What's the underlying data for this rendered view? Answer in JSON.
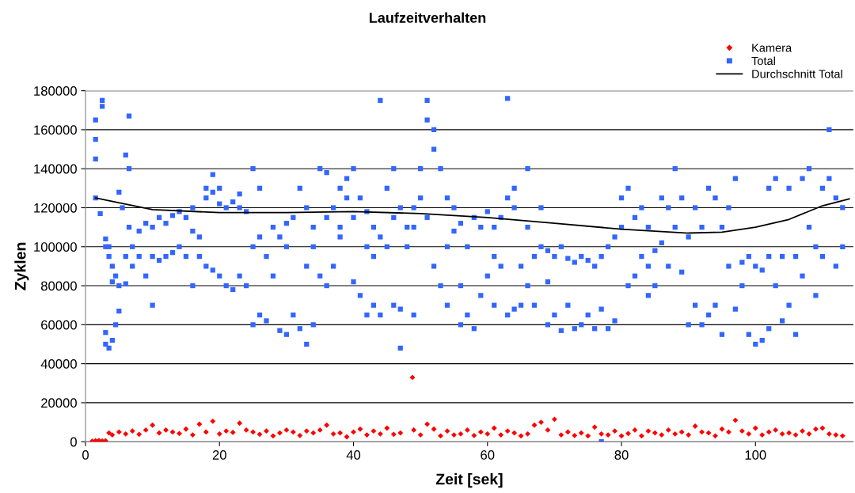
{
  "chart_data": {
    "type": "scatter",
    "title": "Laufzeitverhalten",
    "xlabel": "Zeit [sek]",
    "ylabel": "Zyklen",
    "xlim": [
      0,
      114.6
    ],
    "xticks": [
      0,
      20,
      40,
      60,
      80,
      100
    ],
    "ylim": [
      0,
      180000
    ],
    "yticks": [
      0,
      20000,
      40000,
      60000,
      80000,
      100000,
      120000,
      140000,
      160000,
      180000
    ],
    "grid": "y",
    "legend": "top right",
    "series": [
      {
        "name": "Kamera",
        "color": "#ff0000",
        "marker": "diamond",
        "x": [
          1,
          1.5,
          2,
          2.5,
          3,
          3.5,
          4,
          5,
          6,
          7,
          8,
          9,
          10,
          11,
          12,
          13,
          14,
          15,
          16,
          17,
          18,
          19,
          20,
          21,
          22,
          23,
          24,
          25,
          26,
          27,
          28,
          29,
          30,
          31,
          32,
          33,
          34,
          35,
          36,
          37,
          38,
          39,
          40,
          41,
          42,
          43,
          44,
          45,
          46,
          47,
          48.8,
          49,
          50,
          51,
          52,
          53,
          54,
          55,
          56,
          57,
          58,
          59,
          60,
          61,
          62,
          63,
          64,
          65,
          66,
          67,
          68,
          69,
          70,
          71,
          72,
          73,
          74,
          75,
          76,
          77,
          78,
          79,
          80,
          81,
          82,
          83,
          84,
          85,
          86,
          87,
          88,
          89,
          90,
          91,
          92,
          93,
          94,
          95,
          96,
          97,
          98,
          99,
          100,
          101,
          102,
          103,
          104,
          105,
          106,
          107,
          108,
          109,
          110,
          111,
          112,
          113
        ],
        "values": [
          300,
          500,
          600,
          400,
          500,
          4500,
          3500,
          5000,
          4000,
          5500,
          3800,
          6000,
          8500,
          4500,
          6000,
          5000,
          4200,
          6500,
          3500,
          9000,
          5000,
          10500,
          4000,
          5500,
          4800,
          9500,
          6000,
          5000,
          3800,
          5500,
          3000,
          4500,
          6000,
          5000,
          3200,
          5500,
          4500,
          6000,
          8500,
          4000,
          4500,
          2500,
          5000,
          6500,
          3500,
          5500,
          4000,
          7000,
          3800,
          4500,
          33000,
          6000,
          3500,
          9000,
          6500,
          3000,
          5500,
          3500,
          4000,
          6000,
          3200,
          5000,
          4000,
          7000,
          3500,
          5500,
          4500,
          3000,
          4000,
          8500,
          10000,
          6000,
          11500,
          3500,
          5000,
          3200,
          4500,
          3000,
          7500,
          4000,
          3500,
          5500,
          3000,
          4200,
          6000,
          3000,
          5500,
          4500,
          3500,
          6000,
          4000,
          5000,
          3500,
          8000,
          5000,
          4500,
          3000,
          6500,
          5000,
          11000,
          5500,
          4000,
          7000,
          3500,
          5000,
          6000,
          4000,
          4500,
          3500,
          5500,
          4000,
          6500,
          7000,
          4000,
          3500,
          3000
        ]
      },
      {
        "name": "Total",
        "color": "#3366ff",
        "marker": "square",
        "x": [
          1.5,
          1.5,
          1.5,
          1.5,
          2.2,
          2.5,
          2.5,
          3,
          3,
          3,
          3,
          3.5,
          3.5,
          3.5,
          4,
          4,
          4,
          4.5,
          4.5,
          5,
          5,
          5,
          5.5,
          6,
          6,
          6,
          6.5,
          6.5,
          6.5,
          7,
          7,
          8,
          8,
          9,
          9,
          10,
          10,
          10,
          11,
          11,
          12,
          12,
          13,
          13,
          14,
          14,
          15,
          15,
          16,
          16,
          16,
          17,
          17,
          18,
          18,
          18,
          19,
          19,
          19,
          20,
          20,
          20,
          21,
          21,
          22,
          22,
          23,
          23,
          23,
          24,
          24,
          25,
          25,
          25,
          26,
          26,
          26,
          27,
          27,
          28,
          28,
          29,
          29,
          30,
          30,
          30,
          31,
          31,
          32,
          32,
          33,
          33,
          33,
          34,
          34,
          34,
          35,
          35,
          36,
          36,
          36,
          37,
          37,
          38,
          38,
          38,
          39,
          39,
          40,
          40,
          40,
          41,
          41,
          42,
          42,
          42,
          43,
          43,
          43,
          44,
          44,
          44,
          45,
          45,
          46,
          46,
          46,
          47,
          47,
          47,
          48,
          48,
          49,
          49,
          49,
          50,
          50,
          51,
          51,
          51,
          52,
          52,
          52,
          53,
          53,
          54,
          54,
          54,
          55,
          55,
          56,
          56,
          56,
          57,
          57,
          58,
          58,
          59,
          59,
          60,
          60,
          61,
          61,
          61,
          62,
          62,
          63,
          63,
          63,
          64,
          64,
          64,
          65,
          65,
          66,
          66,
          66,
          67,
          67,
          68,
          68,
          69,
          69,
          69,
          70,
          70,
          71,
          71,
          72,
          72,
          73,
          73,
          74,
          74,
          75,
          75,
          76,
          76,
          77,
          77,
          77,
          78,
          78,
          79,
          79,
          80,
          80,
          81,
          81,
          82,
          82,
          83,
          83,
          84,
          84,
          84,
          85,
          85,
          86,
          86,
          87,
          87,
          88,
          88,
          89,
          89,
          90,
          90,
          91,
          91,
          92,
          92,
          93,
          93,
          94,
          94,
          95,
          95,
          96,
          96,
          97,
          97,
          98,
          98,
          99,
          99,
          100,
          100,
          101,
          101,
          102,
          102,
          102,
          103,
          103,
          104,
          104,
          105,
          105,
          106,
          106,
          107,
          107,
          108,
          108,
          109,
          109,
          110,
          110,
          111,
          111,
          112,
          112,
          113,
          113
        ],
        "values": [
          165000,
          155000,
          145000,
          125000,
          117000,
          175000,
          172000,
          56000,
          50000,
          100000,
          104000,
          48000,
          100000,
          95000,
          52000,
          90000,
          82000,
          60000,
          85000,
          67000,
          80000,
          128000,
          120000,
          81000,
          95000,
          147000,
          110000,
          167000,
          140000,
          100000,
          90000,
          108000,
          95000,
          112000,
          85000,
          110000,
          70000,
          95000,
          93000,
          115000,
          95000,
          112000,
          116000,
          97000,
          118000,
          100000,
          115000,
          95000,
          80000,
          108000,
          120000,
          105000,
          95000,
          130000,
          90000,
          125000,
          137000,
          128000,
          88000,
          122000,
          85000,
          130000,
          120000,
          80000,
          123000,
          78000,
          120000,
          85000,
          127000,
          118000,
          80000,
          140000,
          60000,
          100000,
          130000,
          65000,
          105000,
          95000,
          62000,
          85000,
          110000,
          105000,
          57000,
          112000,
          55000,
          100000,
          115000,
          65000,
          130000,
          58000,
          120000,
          50000,
          90000,
          110000,
          100000,
          60000,
          140000,
          85000,
          138000,
          80000,
          115000,
          120000,
          90000,
          110000,
          105000,
          130000,
          135000,
          125000,
          140000,
          115000,
          82000,
          125000,
          75000,
          118000,
          100000,
          65000,
          110000,
          70000,
          95000,
          105000,
          175000,
          65000,
          130000,
          100000,
          140000,
          70000,
          115000,
          120000,
          48000,
          68000,
          100000,
          110000,
          110000,
          65000,
          120000,
          140000,
          125000,
          175000,
          165000,
          115000,
          160000,
          150000,
          90000,
          140000,
          80000,
          125000,
          70000,
          100000,
          120000,
          108000,
          112000,
          80000,
          60000,
          100000,
          65000,
          115000,
          58000,
          110000,
          75000,
          118000,
          85000,
          95000,
          70000,
          110000,
          90000,
          115000,
          125000,
          65000,
          176000,
          120000,
          68000,
          130000,
          90000,
          70000,
          110000,
          80000,
          140000,
          95000,
          70000,
          120000,
          100000,
          98000,
          82000,
          60000,
          95000,
          65000,
          100000,
          57000,
          94000,
          70000,
          92000,
          58000,
          95000,
          60000,
          93000,
          65000,
          90000,
          58000,
          95000,
          68000,
          0,
          100000,
          58000,
          105000,
          62000,
          110000,
          125000,
          130000,
          80000,
          115000,
          85000,
          120000,
          95000,
          90000,
          75000,
          110000,
          80000,
          98000,
          125000,
          102000,
          120000,
          90000,
          140000,
          110000,
          125000,
          87000,
          105000,
          60000,
          120000,
          70000,
          110000,
          60000,
          130000,
          65000,
          125000,
          70000,
          110000,
          55000,
          120000,
          90000,
          135000,
          68000,
          92000,
          80000,
          95000,
          55000,
          90000,
          50000,
          88000,
          52000,
          95000,
          58000,
          130000,
          80000,
          135000,
          95000,
          62000,
          130000,
          70000,
          95000,
          55000,
          85000,
          135000,
          110000,
          140000,
          75000,
          100000,
          95000,
          130000,
          135000,
          160000,
          125000,
          90000,
          120000,
          100000
        ]
      },
      {
        "name": "Durchschnitt Total",
        "type": "line",
        "color": "#000000",
        "line_style": "solid",
        "x": [
          1.5,
          10,
          20,
          30,
          40,
          50,
          60,
          70,
          80,
          90,
          95,
          100,
          105,
          110,
          114
        ],
        "values": [
          125000,
          119000,
          117500,
          117500,
          118000,
          117000,
          115000,
          112000,
          109000,
          107000,
          107500,
          110000,
          114000,
          121000,
          124500
        ]
      }
    ]
  }
}
